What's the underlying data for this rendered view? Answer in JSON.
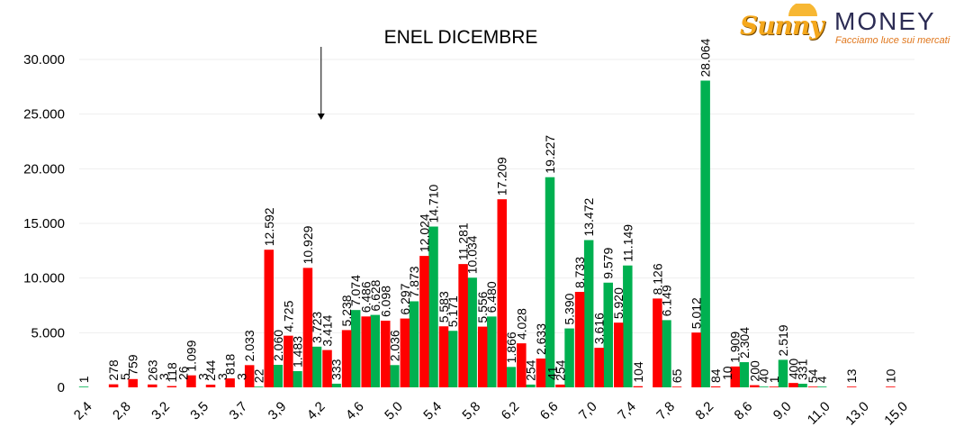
{
  "logo": {
    "brand_left": "Sunny",
    "brand_right": "MONEY",
    "tagline": "Facciamo luce sui mercati"
  },
  "colors": {
    "series_green": "#00b050",
    "series_red": "#ff0000",
    "grid": "#eeeeee"
  },
  "chart_data": {
    "type": "bar",
    "title": "ENEL DICEMBRE",
    "ylim": [
      0,
      30000
    ],
    "yticks": [
      "0",
      "5.000",
      "10.000",
      "15.000",
      "20.000",
      "25.000",
      "30.000"
    ],
    "ytick_values": [
      0,
      5000,
      10000,
      15000,
      20000,
      25000,
      30000
    ],
    "grid": true,
    "legend": "none",
    "annotation_arrow_at": "4,2",
    "categories": [
      "2,4",
      "2,6",
      "2,8",
      "3,0",
      "3,2",
      "3,4",
      "3,5",
      "3,6",
      "3,7",
      "3,8",
      "3,9",
      "4,0",
      "4,2",
      "4,4",
      "4,6",
      "4,8",
      "5,0",
      "5,2",
      "5,4",
      "5,6",
      "5,8",
      "6,0",
      "6,2",
      "6,4",
      "6,6",
      "6,8",
      "7,0",
      "7,2",
      "7,4",
      "7,6",
      "7,8",
      "8,0",
      "8,2",
      "8,4",
      "8,6",
      "8,8",
      "9,0",
      "10,0",
      "11,0",
      "12,0",
      "13,0",
      "14,0",
      "15,0"
    ],
    "xtick_labels": [
      "2,4",
      "2,8",
      "3,2",
      "3,5",
      "3,7",
      "3,9",
      "4,2",
      "4,6",
      "5,0",
      "5,4",
      "5,8",
      "6,2",
      "6,6",
      "7,0",
      "7,4",
      "7,8",
      "8,2",
      "8,6",
      "9,0",
      "11,0",
      "13,0",
      "15,0"
    ],
    "series": [
      {
        "color": "green",
        "values": [
          1,
          null,
          null,
          null,
          null,
          null,
          null,
          null,
          null,
          22,
          2060,
          1483,
          3723,
          333,
          7074,
          6628,
          2036,
          7873,
          14710,
          5171,
          10034,
          6480,
          1866,
          254,
          19227,
          5390,
          13472,
          9579,
          11149,
          null,
          6149,
          null,
          28064,
          null,
          2304,
          40,
          2519,
          331,
          4,
          null,
          null,
          null,
          null
        ],
        "labels": [
          "1",
          "",
          "",
          "",
          "",
          "",
          "",
          "",
          "",
          "22",
          "2.060",
          "1.483",
          "3.723",
          "333",
          "7.074",
          "6.628",
          "2.036",
          "7.873",
          "14.710",
          "5.171",
          "10.034",
          "6.480",
          "1.866",
          "254",
          "19.227",
          "5.390",
          "13.472",
          "9.579",
          "11.149",
          "",
          "6.149",
          "",
          "28.064",
          "",
          "2.304",
          "40",
          "2.519",
          "331",
          "4",
          "",
          "",
          "",
          ""
        ]
      },
      {
        "color": "red",
        "values": [
          null,
          278,
          759,
          263,
          118,
          1099,
          244,
          818,
          2033,
          12592,
          4725,
          10929,
          3414,
          5238,
          6486,
          6098,
          6297,
          12024,
          5583,
          11281,
          5556,
          17209,
          4028,
          2633,
          254,
          8733,
          3616,
          5920,
          104,
          8126,
          65,
          5012,
          84,
          1909,
          200,
          1,
          400,
          54,
          null,
          13,
          null,
          10,
          null
        ],
        "labels": [
          "",
          "278",
          "759",
          "263",
          "118",
          "1.099",
          "244",
          "818",
          "2.033",
          "12.592",
          "4.725",
          "10.929",
          "3.414",
          "5.238",
          "6.486",
          "6.098",
          "6.297",
          "12.024",
          "5.583",
          "11.281",
          "5.556",
          "17.209",
          "4.028",
          "2.633",
          "254",
          "8.733",
          "3.616",
          "5.920",
          "104",
          "8.126",
          "65",
          "5.012",
          "84",
          "1.909",
          "200",
          "1",
          "400",
          "54",
          "",
          "13",
          "",
          "10",
          ""
        ]
      }
    ],
    "extra_labels": [
      {
        "category": "2,8",
        "text": "5"
      },
      {
        "category": "3,2",
        "text": "3"
      },
      {
        "category": "3,4",
        "text": "26"
      },
      {
        "category": "3,5",
        "text": "3"
      },
      {
        "category": "3,6",
        "text": "3"
      },
      {
        "category": "3,7",
        "text": "3"
      },
      {
        "category": "6,6",
        "text": "41"
      },
      {
        "category": "8,4",
        "text": "10"
      }
    ]
  }
}
